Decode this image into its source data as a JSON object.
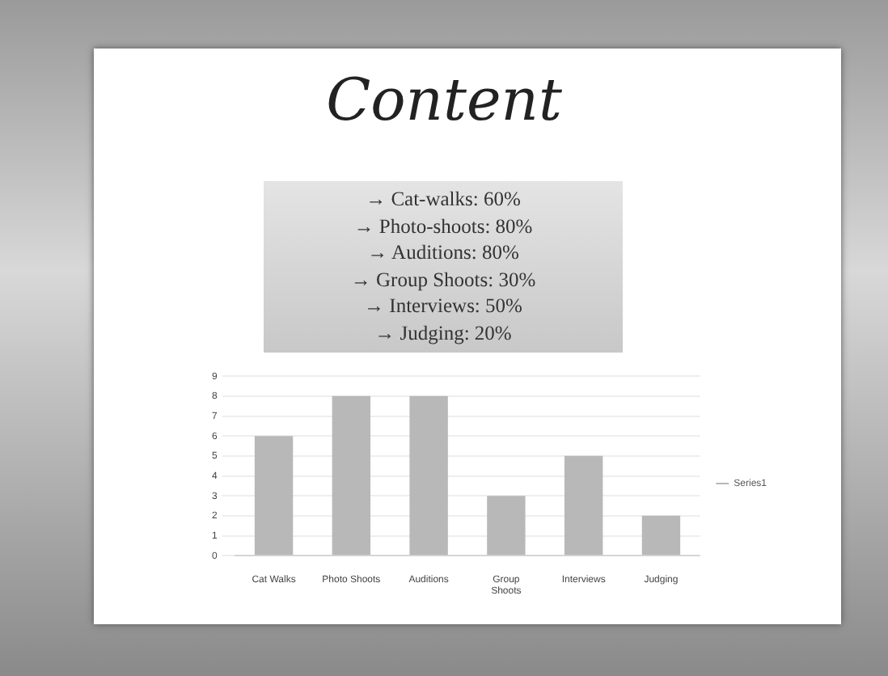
{
  "chart_data": {
    "type": "bar",
    "title": "Content",
    "annotations": [
      "→ Cat-walks: 60%",
      "→ Photo-shoots: 80%",
      "→ Auditions: 80%",
      "→ Group Shoots: 30%",
      "→ Interviews: 50%",
      "→ Judging: 20%"
    ],
    "categories": [
      "Cat Walks",
      "Photo Shoots",
      "Auditions",
      "Group Shoots",
      "Interviews",
      "Judging"
    ],
    "series": [
      {
        "name": "Series1",
        "color": "#b8b8b8",
        "values": [
          6,
          8,
          8,
          3,
          5,
          2
        ]
      }
    ],
    "ylim": [
      0,
      9
    ],
    "yticks": [
      0,
      1,
      2,
      3,
      4,
      5,
      6,
      7,
      8,
      9
    ],
    "grid": "y",
    "legend": "right"
  }
}
